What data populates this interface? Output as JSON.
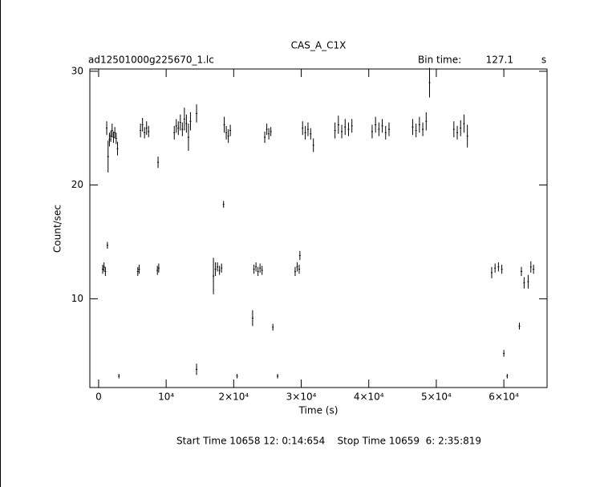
{
  "chart_data": {
    "type": "scatter",
    "title": "CAS_A_C1X",
    "file_name": "ad12501000g225670_1.lc",
    "bin_time_label": "Bin time:",
    "bin_time": 127.1,
    "bin_time_unit": "s",
    "x_label": "Time (s)",
    "y_label": "Count/sec",
    "footer": "Start Time 10658 12: 0:14:654    Stop Time 10659  6: 2:35:819",
    "color": "#000000",
    "xlim": [
      -1300,
      66400
    ],
    "ylim": [
      2.2,
      30.2
    ],
    "xticks": [
      0,
      {
        "value": 10000,
        "label": "10⁴"
      },
      {
        "value": 20000,
        "label": "2×10⁴"
      },
      {
        "value": 30000,
        "label": "3×10⁴"
      },
      {
        "value": 40000,
        "label": "4×10⁴"
      },
      {
        "value": 50000,
        "label": "5×10⁴"
      },
      {
        "value": 60000,
        "label": "6×10⁴"
      }
    ],
    "yticks": [
      10,
      20,
      30
    ],
    "x": [
      600,
      800,
      1000,
      1200,
      1400,
      1600,
      1800,
      2000,
      2200,
      2400,
      2600,
      2800,
      5800,
      6000,
      6200,
      6500,
      6800,
      7100,
      7400,
      8700,
      8900,
      11200,
      11500,
      11800,
      12100,
      12400,
      12700,
      13000,
      13300,
      13600,
      14500,
      17000,
      17300,
      17600,
      17900,
      18200,
      18600,
      18900,
      19200,
      19500,
      23000,
      23300,
      23600,
      23900,
      24200,
      24600,
      24900,
      25200,
      25500,
      29100,
      29400,
      29700,
      30200,
      30600,
      31000,
      31400,
      31800,
      35000,
      35500,
      36000,
      36500,
      37000,
      37500,
      40500,
      41000,
      41500,
      42000,
      42500,
      43000,
      46500,
      47000,
      47500,
      48000,
      48500,
      49000,
      52600,
      53100,
      53600,
      54100,
      54600,
      58200,
      58700,
      59200,
      59700,
      62600,
      63600,
      64000,
      64400,
      3000,
      14500,
      20500,
      26500,
      60500,
      1300,
      8800,
      18500,
      22800,
      25800,
      29800,
      60000,
      62300,
      63000
    ],
    "values": [
      12.6,
      12.8,
      12.4,
      25.0,
      22.5,
      24.0,
      24.3,
      24.8,
      24.2,
      24.6,
      24.1,
      23.2,
      12.4,
      12.6,
      24.8,
      25.3,
      24.6,
      25.0,
      24.7,
      12.5,
      12.7,
      24.6,
      25.2,
      25.0,
      25.5,
      24.9,
      25.8,
      25.4,
      24.2,
      25.6,
      26.3,
      12.0,
      12.6,
      12.8,
      12.5,
      12.7,
      25.3,
      24.6,
      24.3,
      24.8,
      12.6,
      12.8,
      12.4,
      12.7,
      12.5,
      24.2,
      24.9,
      24.5,
      24.7,
      12.4,
      12.8,
      12.6,
      25.0,
      24.6,
      24.9,
      24.5,
      23.5,
      24.8,
      25.3,
      24.7,
      25.1,
      24.9,
      25.2,
      24.7,
      25.3,
      24.9,
      25.2,
      24.6,
      24.9,
      25.1,
      24.8,
      25.3,
      24.9,
      25.6,
      29.0,
      24.9,
      24.6,
      25.0,
      25.4,
      24.3,
      12.3,
      12.7,
      12.8,
      12.6,
      12.4,
      11.5,
      12.8,
      12.6,
      3.2,
      3.8,
      3.2,
      3.2,
      3.2,
      14.7,
      22.0,
      18.3,
      8.3,
      7.5,
      13.8,
      5.2,
      7.6,
      11.4
    ],
    "errors": [
      0.4,
      0.4,
      0.4,
      0.6,
      1.4,
      0.6,
      0.5,
      0.6,
      0.5,
      0.5,
      0.5,
      0.6,
      0.4,
      0.4,
      0.6,
      0.6,
      0.5,
      0.6,
      0.5,
      0.4,
      0.4,
      0.6,
      0.6,
      0.6,
      0.7,
      0.6,
      1.0,
      0.8,
      1.2,
      0.8,
      0.8,
      1.6,
      0.6,
      0.4,
      0.4,
      0.4,
      0.7,
      0.6,
      0.6,
      0.5,
      0.4,
      0.4,
      0.4,
      0.4,
      0.4,
      0.5,
      0.5,
      0.5,
      0.4,
      0.4,
      0.4,
      0.4,
      0.6,
      0.6,
      0.6,
      0.5,
      0.6,
      0.7,
      0.8,
      0.6,
      0.7,
      0.6,
      0.6,
      0.6,
      0.7,
      0.6,
      0.6,
      0.6,
      0.6,
      0.7,
      0.6,
      0.7,
      0.6,
      0.8,
      1.3,
      0.7,
      0.6,
      0.7,
      0.8,
      1.0,
      0.5,
      0.4,
      0.4,
      0.4,
      0.4,
      0.6,
      0.5,
      0.4,
      0.2,
      0.5,
      0.2,
      0.2,
      0.2,
      0.3,
      0.5,
      0.3,
      0.7,
      0.3,
      0.4,
      0.3,
      0.3,
      0.5
    ]
  }
}
